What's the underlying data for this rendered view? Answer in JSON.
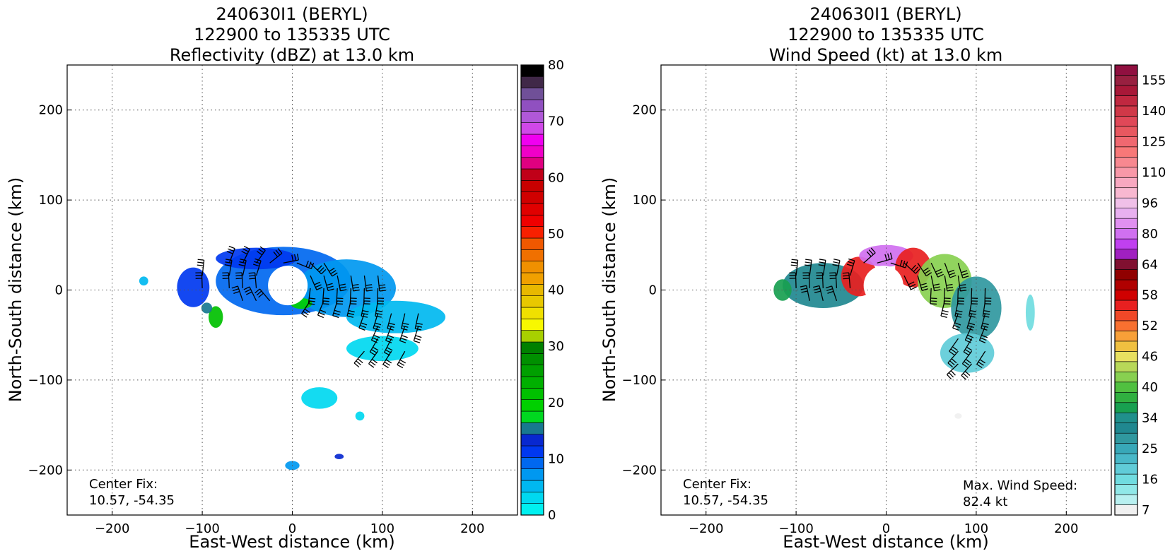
{
  "chart_data": [
    {
      "type": "heatmap",
      "title_lines": [
        "240630I1 (BERYL)",
        "122900 to 135335 UTC",
        "Reflectivity (dBZ) at 13.0 km"
      ],
      "xlabel": "East-West distance (km)",
      "ylabel": "North-South distance (km)",
      "xlim": [
        -250,
        250
      ],
      "ylim": [
        -250,
        250
      ],
      "xticks": [
        "−200",
        "−100",
        "0",
        "100",
        "200"
      ],
      "xtick_values": [
        -200,
        -100,
        0,
        100,
        200
      ],
      "yticks": [
        "200",
        "100",
        "0",
        "−100",
        "−200"
      ],
      "ytick_values": [
        200,
        100,
        0,
        -100,
        -200
      ],
      "grid": true,
      "annotation_lines": [
        "Center Fix:",
        "10.57, -54.35"
      ],
      "colorbar": {
        "range": [
          0,
          80
        ],
        "tick_labels": [
          "0",
          "10",
          "20",
          "30",
          "40",
          "50",
          "60",
          "70",
          "80"
        ],
        "tick_values": [
          0,
          10,
          20,
          30,
          40,
          50,
          60,
          70,
          80
        ],
        "colors": [
          "#00f0f0",
          "#00d8f0",
          "#00b8f0",
          "#0098f0",
          "#0068f0",
          "#0038f0",
          "#0828d0",
          "#187890",
          "#00d820",
          "#00d000",
          "#00c000",
          "#00b000",
          "#00a000",
          "#009000",
          "#008000",
          "#a8d000",
          "#f8f800",
          "#f0e000",
          "#e8c800",
          "#e8b800",
          "#f0a000",
          "#f09000",
          "#f07000",
          "#f05800",
          "#f82000",
          "#f00000",
          "#e00000",
          "#d00000",
          "#c80000",
          "#c00018",
          "#e00080",
          "#f000c8",
          "#f000f0",
          "#d048e8",
          "#b058d8",
          "#9050c0",
          "#705098",
          "#402848",
          "#000000"
        ]
      },
      "blobs": [
        {
          "cx": -10,
          "cy": 10,
          "rx": 75,
          "ry": 38,
          "value": 10
        },
        {
          "cx": 60,
          "cy": 2,
          "rx": 55,
          "ry": 32,
          "value": 8
        },
        {
          "cx": 115,
          "cy": -30,
          "rx": 55,
          "ry": 18,
          "value": 5
        },
        {
          "cx": 100,
          "cy": -65,
          "rx": 40,
          "ry": 14,
          "value": 3
        },
        {
          "cx": -110,
          "cy": 3,
          "rx": 18,
          "ry": 22,
          "value": 12
        },
        {
          "cx": -85,
          "cy": -30,
          "rx": 8,
          "ry": 12,
          "value": 22
        },
        {
          "cx": -40,
          "cy": 35,
          "rx": 45,
          "ry": 12,
          "value": 12
        },
        {
          "cx": 10,
          "cy": -15,
          "rx": 12,
          "ry": 6,
          "value": 20
        },
        {
          "cx": -95,
          "cy": -20,
          "rx": 6,
          "ry": 6,
          "value": 16
        },
        {
          "cx": 30,
          "cy": -120,
          "rx": 20,
          "ry": 12,
          "value": 4
        },
        {
          "cx": 0,
          "cy": -195,
          "rx": 8,
          "ry": 5,
          "value": 8
        },
        {
          "cx": 52,
          "cy": -185,
          "rx": 5,
          "ry": 3,
          "value": 14
        },
        {
          "cx": 75,
          "cy": -140,
          "rx": 5,
          "ry": 5,
          "value": 4
        },
        {
          "cx": -165,
          "cy": 10,
          "rx": 5,
          "ry": 5,
          "value": 6
        }
      ],
      "eye": {
        "cx": -5,
        "cy": 5,
        "rx": 22,
        "ry": 22
      }
    },
    {
      "type": "heatmap",
      "title_lines": [
        "240630I1 (BERYL)",
        "122900 to 135335 UTC",
        "Wind Speed (kt) at 13.0 km"
      ],
      "xlabel": "East-West distance (km)",
      "ylabel": "North-South distance (km)",
      "xlim": [
        -250,
        250
      ],
      "ylim": [
        -250,
        250
      ],
      "xticks": [
        "−200",
        "−100",
        "0",
        "100",
        "200"
      ],
      "xtick_values": [
        -200,
        -100,
        0,
        100,
        200
      ],
      "yticks": [
        "200",
        "100",
        "0",
        "−100",
        "−200"
      ],
      "ytick_values": [
        200,
        100,
        0,
        -100,
        -200
      ],
      "grid": true,
      "annotation_lines": [
        "Center Fix:",
        "10.57, -54.35"
      ],
      "max_wind_lines": [
        "Max. Wind Speed:",
        "82.4 kt"
      ],
      "colorbar": {
        "tick_labels": [
          "7",
          "16",
          "25",
          "34",
          "40",
          "46",
          "52",
          "58",
          "64",
          "80",
          "96",
          "110",
          "125",
          "140",
          "155"
        ],
        "tick_index": [
          0.5,
          3.5,
          6.5,
          9.5,
          12.5,
          15.5,
          18.5,
          21.5,
          24.5,
          27.5,
          30.5,
          33.5,
          36.5,
          39.5,
          42.5
        ],
        "colors": [
          "#f0f0f0",
          "#b8f0f0",
          "#90e8e8",
          "#70dce0",
          "#60ccd8",
          "#48b8c8",
          "#38a8b8",
          "#30989f",
          "#208890",
          "#20908c",
          "#18a050",
          "#30b040",
          "#50c040",
          "#88d050",
          "#b8d858",
          "#e8e060",
          "#f0c040",
          "#f8a038",
          "#f87030",
          "#f04828",
          "#e82020",
          "#d00000",
          "#b00000",
          "#900000",
          "#801030",
          "#a020c0",
          "#c040f0",
          "#d070f0",
          "#e090f0",
          "#e8b0f0",
          "#f0c0e8",
          "#f8b8d0",
          "#f8a8c0",
          "#f898a8",
          "#f88890",
          "#f87878",
          "#f06870",
          "#e85860",
          "#e04858",
          "#d03848",
          "#c02840",
          "#a81838",
          "#982040",
          "#901040"
        ]
      },
      "blobs": [
        {
          "cx": -70,
          "cy": 5,
          "rx": 45,
          "ry": 25,
          "value": 30
        },
        {
          "cx": -30,
          "cy": 15,
          "rx": 20,
          "ry": 22,
          "value": 55
        },
        {
          "cx": 0,
          "cy": 38,
          "rx": 30,
          "ry": 12,
          "value": 80
        },
        {
          "cx": 30,
          "cy": 25,
          "rx": 20,
          "ry": 22,
          "value": 55
        },
        {
          "cx": 65,
          "cy": 10,
          "rx": 30,
          "ry": 30,
          "value": 42
        },
        {
          "cx": 100,
          "cy": -20,
          "rx": 28,
          "ry": 35,
          "value": 28
        },
        {
          "cx": 90,
          "cy": -70,
          "rx": 30,
          "ry": 22,
          "value": 20
        },
        {
          "cx": 160,
          "cy": -25,
          "rx": 5,
          "ry": 20,
          "value": 16
        },
        {
          "cx": 80,
          "cy": -140,
          "rx": 4,
          "ry": 3,
          "value": 7
        },
        {
          "cx": -115,
          "cy": 0,
          "rx": 10,
          "ry": 12,
          "value": 36
        }
      ],
      "eye": {
        "cx": -3,
        "cy": 5,
        "rx": 22,
        "ry": 22
      }
    }
  ]
}
